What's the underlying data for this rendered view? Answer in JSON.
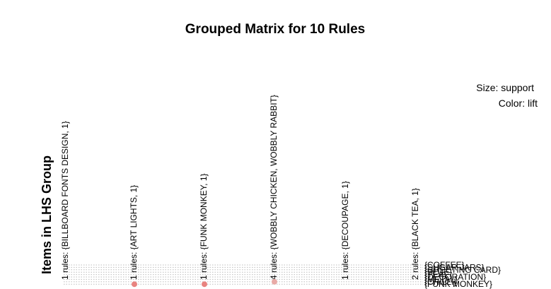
{
  "chart_data": {
    "type": "scatter",
    "title": "Grouped Matrix for 10 Rules",
    "legend": {
      "size": "Size: support",
      "color": "Color: lift",
      "placement": "top-right"
    },
    "ylabel": "Items in LHS Group",
    "lhs_groups": [
      "1 rules: {BILLBOARD FONTS DESIGN, 1}",
      "1 rules: {ART LIGHTS, 1}",
      "1 rules: {FUNK MONKEY, 1}",
      "4 rules: {WOBBLY CHICKEN, WOBBLY RABBIT}",
      "1 rules: {DECOUPAGE, 1}",
      "2 rules: {BLACK TEA, 1}"
    ],
    "rhs_items": [
      "{COFFEE}",
      "{SUGAR JARS}",
      "{GREETING CARD}",
      "{BLUE}",
      "{TEA}",
      "{DECORATION}",
      "{METAL}",
      "{CHILLI}",
      "{FUNK MONKEY}"
    ],
    "points": [
      {
        "group": 1,
        "rhs": 8,
        "color": "#e8837f"
      },
      {
        "group": 2,
        "rhs": 8,
        "color": "#e8837f"
      },
      {
        "group": 3,
        "rhs": 7,
        "color": "#e8aaa6"
      }
    ],
    "grid": true
  }
}
